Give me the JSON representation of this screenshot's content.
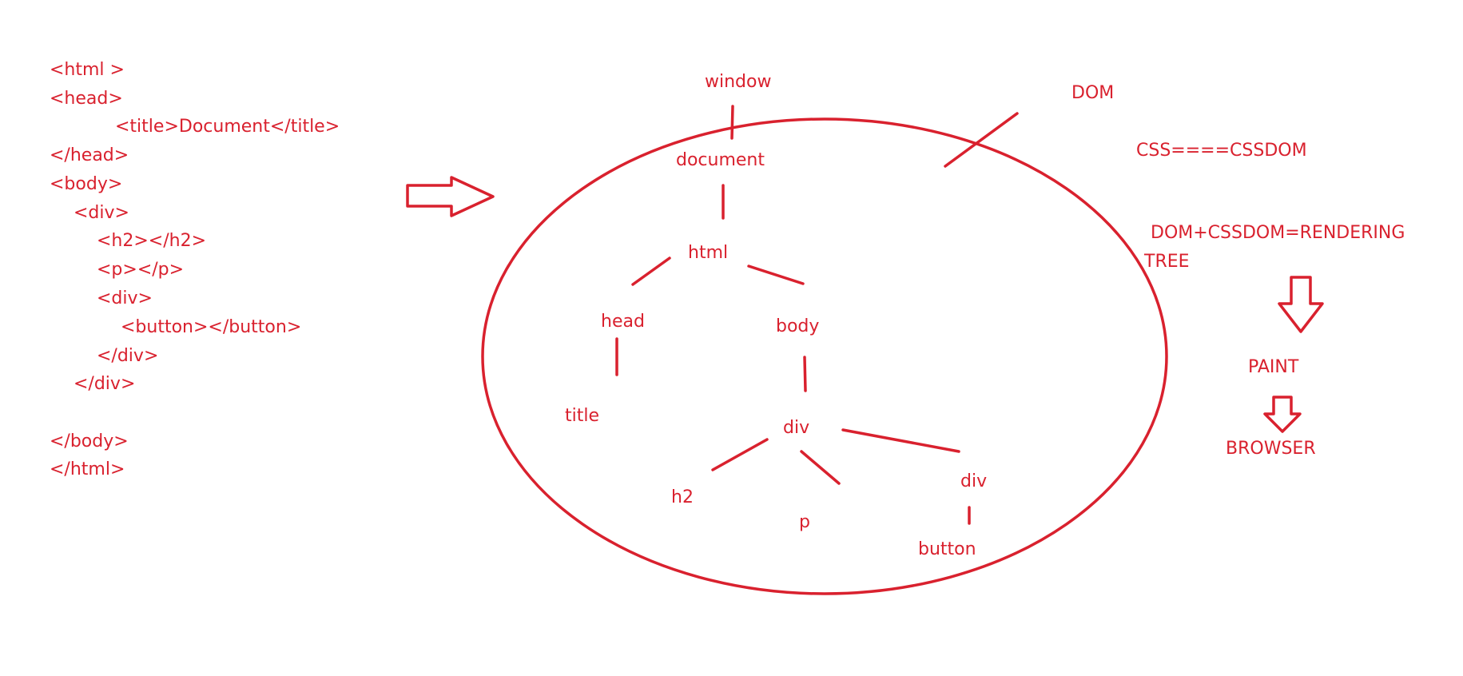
{
  "code": {
    "lines": [
      "<html >",
      "<head>",
      "<title>Document</title>",
      "</head>",
      "<body>",
      "<div>",
      "<h2></h2>",
      "<p></p>",
      "<div>",
      "<button></button>",
      "</div>",
      "</div>",
      "</body>",
      "</html>"
    ]
  },
  "tree": {
    "window": "window",
    "document": "document",
    "html": "html",
    "head": "head",
    "body": "body",
    "title": "title",
    "div": "div",
    "h2": "h2",
    "p": "p",
    "div_inner": "div",
    "button": "button"
  },
  "notes": {
    "dom": "DOM",
    "css": "CSS====CSSDOM",
    "rendering_line1": "DOM+CSSDOM=RENDERING",
    "rendering_line2": "TREE",
    "paint": "PAINT",
    "browser": "BROWSER"
  },
  "colors": {
    "ink": "#d9212e",
    "background": "#ffffff"
  }
}
